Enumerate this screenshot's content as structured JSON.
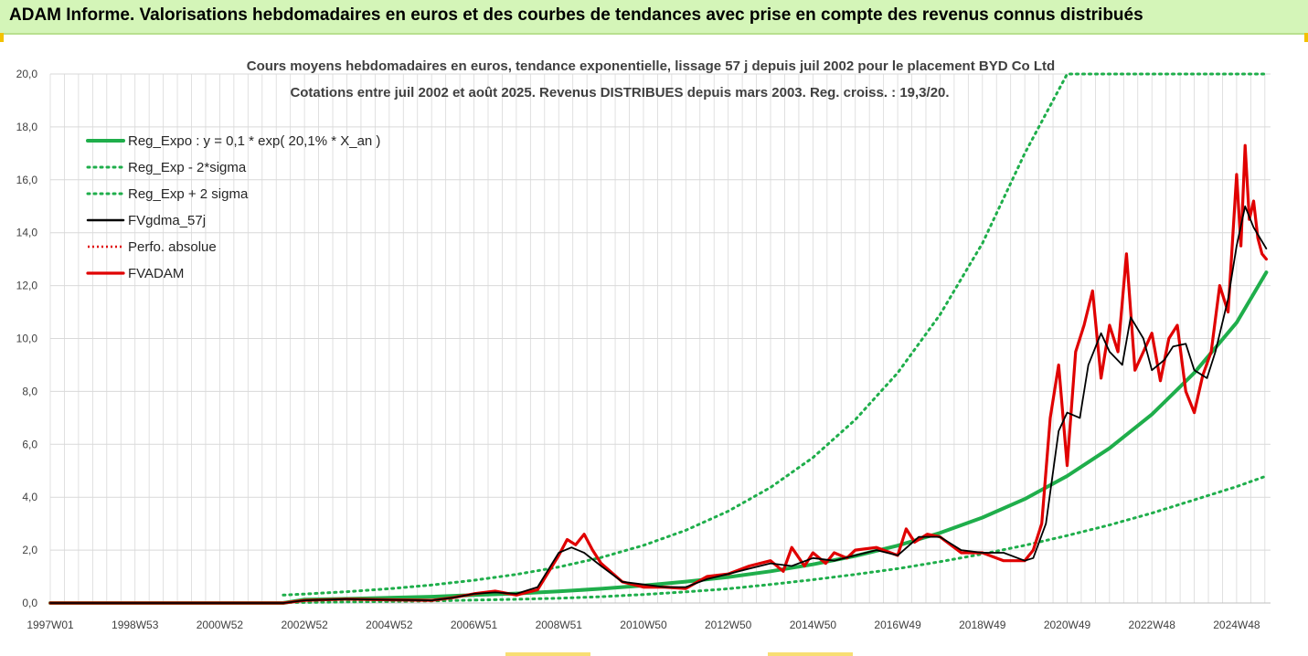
{
  "header": {
    "title": "ADAM Informe. Valorisations hebdomadaires en euros et des courbes de tendances avec prise en compte des revenus connus distribués"
  },
  "colors": {
    "reg_expo": "#1fae4b",
    "sigma": "#1fae4b",
    "fvgdma": "#000000",
    "perfo": "#e00000",
    "fvadam": "#e00000",
    "grid": "#d9d9d9",
    "header_bg": "#d4f5b8"
  },
  "chart_data": {
    "type": "line",
    "title": "Cours moyens hebdomadaires en euros, tendance exponentielle, lissage 57 j depuis juil 2002 pour le placement BYD Co Ltd",
    "subtitle": "Cotations entre juil 2002 et août 2025. Revenus DISTRIBUES depuis mars 2003. Reg. croiss. : 19,3/20.",
    "xlabel": "",
    "ylabel": "",
    "x_range": [
      1997.0,
      2025.8
    ],
    "ylim": [
      0,
      20
    ],
    "y_ticks": [
      "0,0",
      "2,0",
      "4,0",
      "6,0",
      "8,0",
      "10,0",
      "12,0",
      "14,0",
      "16,0",
      "18,0",
      "20,0"
    ],
    "x_ticks": [
      {
        "label": "1997W01",
        "x": 1997.0
      },
      {
        "label": "1998W53",
        "x": 1999.0
      },
      {
        "label": "2000W52",
        "x": 2001.0
      },
      {
        "label": "2002W52",
        "x": 2003.0
      },
      {
        "label": "2004W52",
        "x": 2005.0
      },
      {
        "label": "2006W51",
        "x": 2007.0
      },
      {
        "label": "2008W51",
        "x": 2009.0
      },
      {
        "label": "2010W50",
        "x": 2011.0
      },
      {
        "label": "2012W50",
        "x": 2013.0
      },
      {
        "label": "2014W50",
        "x": 2015.0
      },
      {
        "label": "2016W49",
        "x": 2017.0
      },
      {
        "label": "2018W49",
        "x": 2019.0
      },
      {
        "label": "2020W49",
        "x": 2021.0
      },
      {
        "label": "2022W48",
        "x": 2023.0
      },
      {
        "label": "2024W48",
        "x": 2025.0
      }
    ],
    "grid": true,
    "legend_position": "top-left",
    "legend": [
      {
        "name": "Reg_Expo : y = 0,1 * exp( 20,1% *  X_an )",
        "key": "reg_expo"
      },
      {
        "name": "Reg_Exp - 2*sigma",
        "key": "lower"
      },
      {
        "name": "Reg_Exp + 2 sigma",
        "key": "upper"
      },
      {
        "name": "FVgdma_57j",
        "key": "fvgdma"
      },
      {
        "name": "Perfo. absolue",
        "key": "perfo"
      },
      {
        "name": "FVADAM",
        "key": "fvadam"
      }
    ],
    "series": [
      {
        "key": "reg_expo",
        "x": [
          1997.0,
          2002.5,
          2003,
          2004,
          2005,
          2006,
          2007,
          2008,
          2009,
          2010,
          2011,
          2012,
          2013,
          2014,
          2015,
          2016,
          2017,
          2018,
          2019,
          2020,
          2021,
          2022,
          2023,
          2024,
          2025,
          2025.7
        ],
        "values": [
          0.0,
          0.0,
          0.13,
          0.16,
          0.2,
          0.24,
          0.3,
          0.36,
          0.44,
          0.54,
          0.66,
          0.81,
          0.98,
          1.2,
          1.46,
          1.78,
          2.17,
          2.65,
          3.23,
          3.93,
          4.8,
          5.85,
          7.13,
          8.7,
          10.6,
          12.5
        ]
      },
      {
        "key": "lower",
        "x": [
          2002.5,
          2003,
          2004,
          2005,
          2006,
          2007,
          2008,
          2009,
          2010,
          2011,
          2012,
          2013,
          2014,
          2015,
          2016,
          2017,
          2018,
          2019,
          2020,
          2021,
          2022,
          2023,
          2024,
          2025,
          2025.7
        ],
        "values": [
          0.02,
          0.02,
          0.04,
          0.06,
          0.08,
          0.11,
          0.14,
          0.18,
          0.24,
          0.32,
          0.42,
          0.54,
          0.7,
          0.88,
          1.08,
          1.3,
          1.56,
          1.85,
          2.18,
          2.55,
          2.95,
          3.4,
          3.9,
          4.4,
          4.8
        ]
      },
      {
        "key": "upper",
        "x": [
          2002.5,
          2003,
          2004,
          2005,
          2006,
          2007,
          2008,
          2009,
          2010,
          2011,
          2012,
          2013,
          2014,
          2015,
          2016,
          2017,
          2018,
          2019,
          2020,
          2021,
          2022,
          2023,
          2023.2,
          2025.7
        ],
        "values": [
          0.3,
          0.34,
          0.43,
          0.54,
          0.68,
          0.86,
          1.08,
          1.36,
          1.72,
          2.18,
          2.75,
          3.47,
          4.37,
          5.5,
          6.93,
          8.7,
          10.9,
          13.6,
          17.0,
          20.0,
          20.0,
          20.0,
          20.0,
          20.0
        ]
      },
      {
        "key": "fvgdma",
        "x": [
          1997.0,
          2002.5,
          2003,
          2004,
          2005,
          2006,
          2006.5,
          2007,
          2007.5,
          2008,
          2008.5,
          2009,
          2009.3,
          2009.6,
          2010,
          2010.5,
          2011,
          2011.5,
          2012,
          2012.5,
          2013,
          2013.5,
          2014,
          2014.5,
          2015,
          2015.5,
          2016,
          2016.5,
          2017,
          2017.5,
          2018,
          2018.5,
          2019,
          2019.5,
          2020,
          2020.2,
          2020.5,
          2020.8,
          2021,
          2021.3,
          2021.5,
          2021.8,
          2022,
          2022.3,
          2022.5,
          2022.8,
          2023,
          2023.3,
          2023.5,
          2023.8,
          2024,
          2024.3,
          2024.5,
          2024.8,
          2025,
          2025.2,
          2025.4,
          2025.7
        ],
        "values": [
          0.0,
          0.0,
          0.1,
          0.15,
          0.12,
          0.1,
          0.2,
          0.35,
          0.4,
          0.35,
          0.6,
          1.9,
          2.1,
          1.9,
          1.4,
          0.8,
          0.7,
          0.6,
          0.6,
          0.9,
          1.1,
          1.3,
          1.5,
          1.4,
          1.7,
          1.6,
          1.8,
          2.0,
          1.8,
          2.5,
          2.5,
          2.0,
          1.9,
          1.9,
          1.6,
          1.7,
          3.0,
          6.5,
          7.2,
          7.0,
          9.0,
          10.2,
          9.5,
          9.0,
          10.8,
          10.0,
          8.8,
          9.2,
          9.7,
          9.8,
          8.8,
          8.5,
          9.5,
          11.5,
          13.5,
          15.0,
          14.2,
          13.4
        ]
      },
      {
        "key": "fvadam",
        "x": [
          1997.0,
          2002.5,
          2003,
          2004,
          2005,
          2006,
          2006.5,
          2007,
          2007.5,
          2008,
          2008.5,
          2009,
          2009.2,
          2009.4,
          2009.6,
          2009.8,
          2010,
          2010.5,
          2011,
          2011.5,
          2012,
          2012.5,
          2013,
          2013.5,
          2014,
          2014.3,
          2014.5,
          2014.8,
          2015,
          2015.3,
          2015.5,
          2015.8,
          2016,
          2016.5,
          2017,
          2017.2,
          2017.4,
          2017.7,
          2018,
          2018.5,
          2019,
          2019.5,
          2020,
          2020.2,
          2020.4,
          2020.6,
          2020.8,
          2021,
          2021.2,
          2021.4,
          2021.6,
          2021.8,
          2022,
          2022.2,
          2022.4,
          2022.6,
          2022.8,
          2023,
          2023.2,
          2023.4,
          2023.6,
          2023.8,
          2024,
          2024.2,
          2024.4,
          2024.6,
          2024.8,
          2025,
          2025.1,
          2025.2,
          2025.3,
          2025.4,
          2025.5,
          2025.6,
          2025.7
        ],
        "values": [
          0.0,
          0.0,
          0.1,
          0.15,
          0.12,
          0.1,
          0.2,
          0.35,
          0.45,
          0.3,
          0.5,
          1.8,
          2.4,
          2.2,
          2.6,
          2.0,
          1.5,
          0.8,
          0.6,
          0.6,
          0.55,
          1.0,
          1.1,
          1.4,
          1.6,
          1.2,
          2.1,
          1.4,
          1.9,
          1.5,
          1.9,
          1.7,
          2.0,
          2.1,
          1.8,
          2.8,
          2.3,
          2.6,
          2.5,
          1.9,
          1.9,
          1.6,
          1.6,
          2.0,
          3.0,
          7.0,
          9.0,
          5.2,
          9.5,
          10.5,
          11.8,
          8.5,
          10.5,
          9.5,
          13.2,
          8.8,
          9.5,
          10.2,
          8.4,
          10.0,
          10.5,
          8.0,
          7.2,
          8.6,
          9.5,
          12.0,
          11.0,
          16.2,
          13.5,
          17.3,
          14.5,
          15.2,
          13.8,
          13.2,
          13.0
        ]
      }
    ]
  }
}
